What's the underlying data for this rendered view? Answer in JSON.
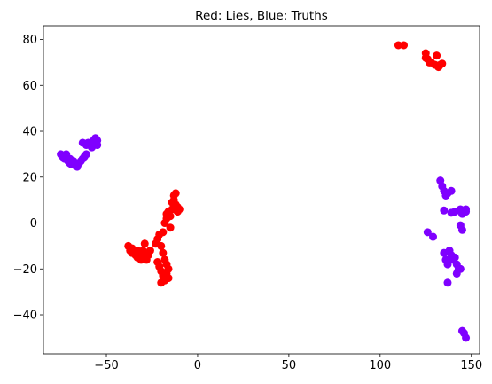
{
  "chart_data": {
    "type": "scatter",
    "title": "Red: Lies, Blue: Truths",
    "xlabel": "",
    "ylabel": "",
    "xlim": [
      -84.5,
      154.5
    ],
    "ylim": [
      -57,
      86
    ],
    "xticks": [
      -50,
      0,
      50,
      100,
      150
    ],
    "yticks": [
      -40,
      -20,
      0,
      20,
      40,
      60,
      80
    ],
    "grid": false,
    "legend": "none",
    "colors": {
      "lies": "#ff0000",
      "truths": "#7f00ff"
    },
    "series": [
      {
        "color_key": "lies",
        "points": [
          [
            110,
            77.5
          ],
          [
            113,
            77.5
          ],
          [
            125,
            74
          ],
          [
            125,
            72
          ],
          [
            126,
            71.5
          ],
          [
            127,
            70
          ],
          [
            128,
            70
          ],
          [
            130,
            69
          ],
          [
            131,
            73
          ],
          [
            132,
            68
          ],
          [
            133,
            69
          ],
          [
            134,
            69.5
          ],
          [
            -38,
            -10
          ],
          [
            -37,
            -12
          ],
          [
            -36,
            -11
          ],
          [
            -36,
            -13
          ],
          [
            -35,
            -12
          ],
          [
            -34,
            -14
          ],
          [
            -33,
            -12
          ],
          [
            -33,
            -15
          ],
          [
            -32,
            -13
          ],
          [
            -31,
            -14
          ],
          [
            -31,
            -16
          ],
          [
            -30,
            -12
          ],
          [
            -29,
            -15
          ],
          [
            -29,
            -9
          ],
          [
            -28,
            -13
          ],
          [
            -28,
            -16
          ],
          [
            -27,
            -14
          ],
          [
            -26,
            -12
          ],
          [
            -23,
            -9
          ],
          [
            -22,
            -7
          ],
          [
            -21,
            -5
          ],
          [
            -20,
            -10
          ],
          [
            -19,
            -4
          ],
          [
            -19,
            -13
          ],
          [
            -22,
            -17
          ],
          [
            -21,
            -19
          ],
          [
            -20,
            -21
          ],
          [
            -19,
            -23
          ],
          [
            -18,
            -25
          ],
          [
            -20,
            -26
          ],
          [
            -17,
            -22
          ],
          [
            -16,
            -20
          ],
          [
            -16,
            -24
          ],
          [
            -17,
            -18
          ],
          [
            -18,
            -16
          ],
          [
            -18,
            0
          ],
          [
            -17,
            2
          ],
          [
            -17,
            4
          ],
          [
            -16,
            5
          ],
          [
            -15,
            3
          ],
          [
            -14,
            6
          ],
          [
            -14,
            9
          ],
          [
            -13,
            10
          ],
          [
            -13,
            12
          ],
          [
            -12,
            13
          ],
          [
            -12,
            8
          ],
          [
            -11,
            7
          ],
          [
            -11,
            5
          ],
          [
            -10,
            6
          ],
          [
            -15,
            -2
          ]
        ]
      },
      {
        "color_key": "truths",
        "points": [
          [
            -75,
            30
          ],
          [
            -74,
            29
          ],
          [
            -73,
            28
          ],
          [
            -72,
            30
          ],
          [
            -71,
            27
          ],
          [
            -70,
            28
          ],
          [
            -70,
            26
          ],
          [
            -69,
            25.5
          ],
          [
            -68,
            27
          ],
          [
            -67,
            25
          ],
          [
            -66,
            24.5
          ],
          [
            -65,
            26
          ],
          [
            -64,
            27
          ],
          [
            -63,
            28
          ],
          [
            -62,
            29
          ],
          [
            -61,
            30
          ],
          [
            -63,
            35
          ],
          [
            -61,
            34
          ],
          [
            -60,
            35
          ],
          [
            -58,
            33
          ],
          [
            -57,
            36
          ],
          [
            -56,
            37
          ],
          [
            -55,
            36
          ],
          [
            -55,
            34
          ],
          [
            133,
            18.5
          ],
          [
            134,
            16
          ],
          [
            135,
            14
          ],
          [
            136,
            12
          ],
          [
            137,
            13
          ],
          [
            139,
            14
          ],
          [
            135,
            5.5
          ],
          [
            139,
            4.5
          ],
          [
            141,
            5
          ],
          [
            144,
            6
          ],
          [
            145,
            4
          ],
          [
            147,
            5
          ],
          [
            147,
            6
          ],
          [
            126,
            -4
          ],
          [
            129,
            -6
          ],
          [
            135,
            -13
          ],
          [
            136,
            -16
          ],
          [
            137,
            -18
          ],
          [
            138,
            -12
          ],
          [
            139,
            -14
          ],
          [
            140,
            -16
          ],
          [
            141,
            -15
          ],
          [
            142,
            -18
          ],
          [
            143,
            -20
          ],
          [
            142,
            -22
          ],
          [
            144,
            -20
          ],
          [
            144,
            -1
          ],
          [
            145,
            -3
          ],
          [
            137,
            -26
          ],
          [
            145,
            -47
          ],
          [
            146,
            -48
          ],
          [
            147,
            -50
          ]
        ]
      }
    ]
  }
}
